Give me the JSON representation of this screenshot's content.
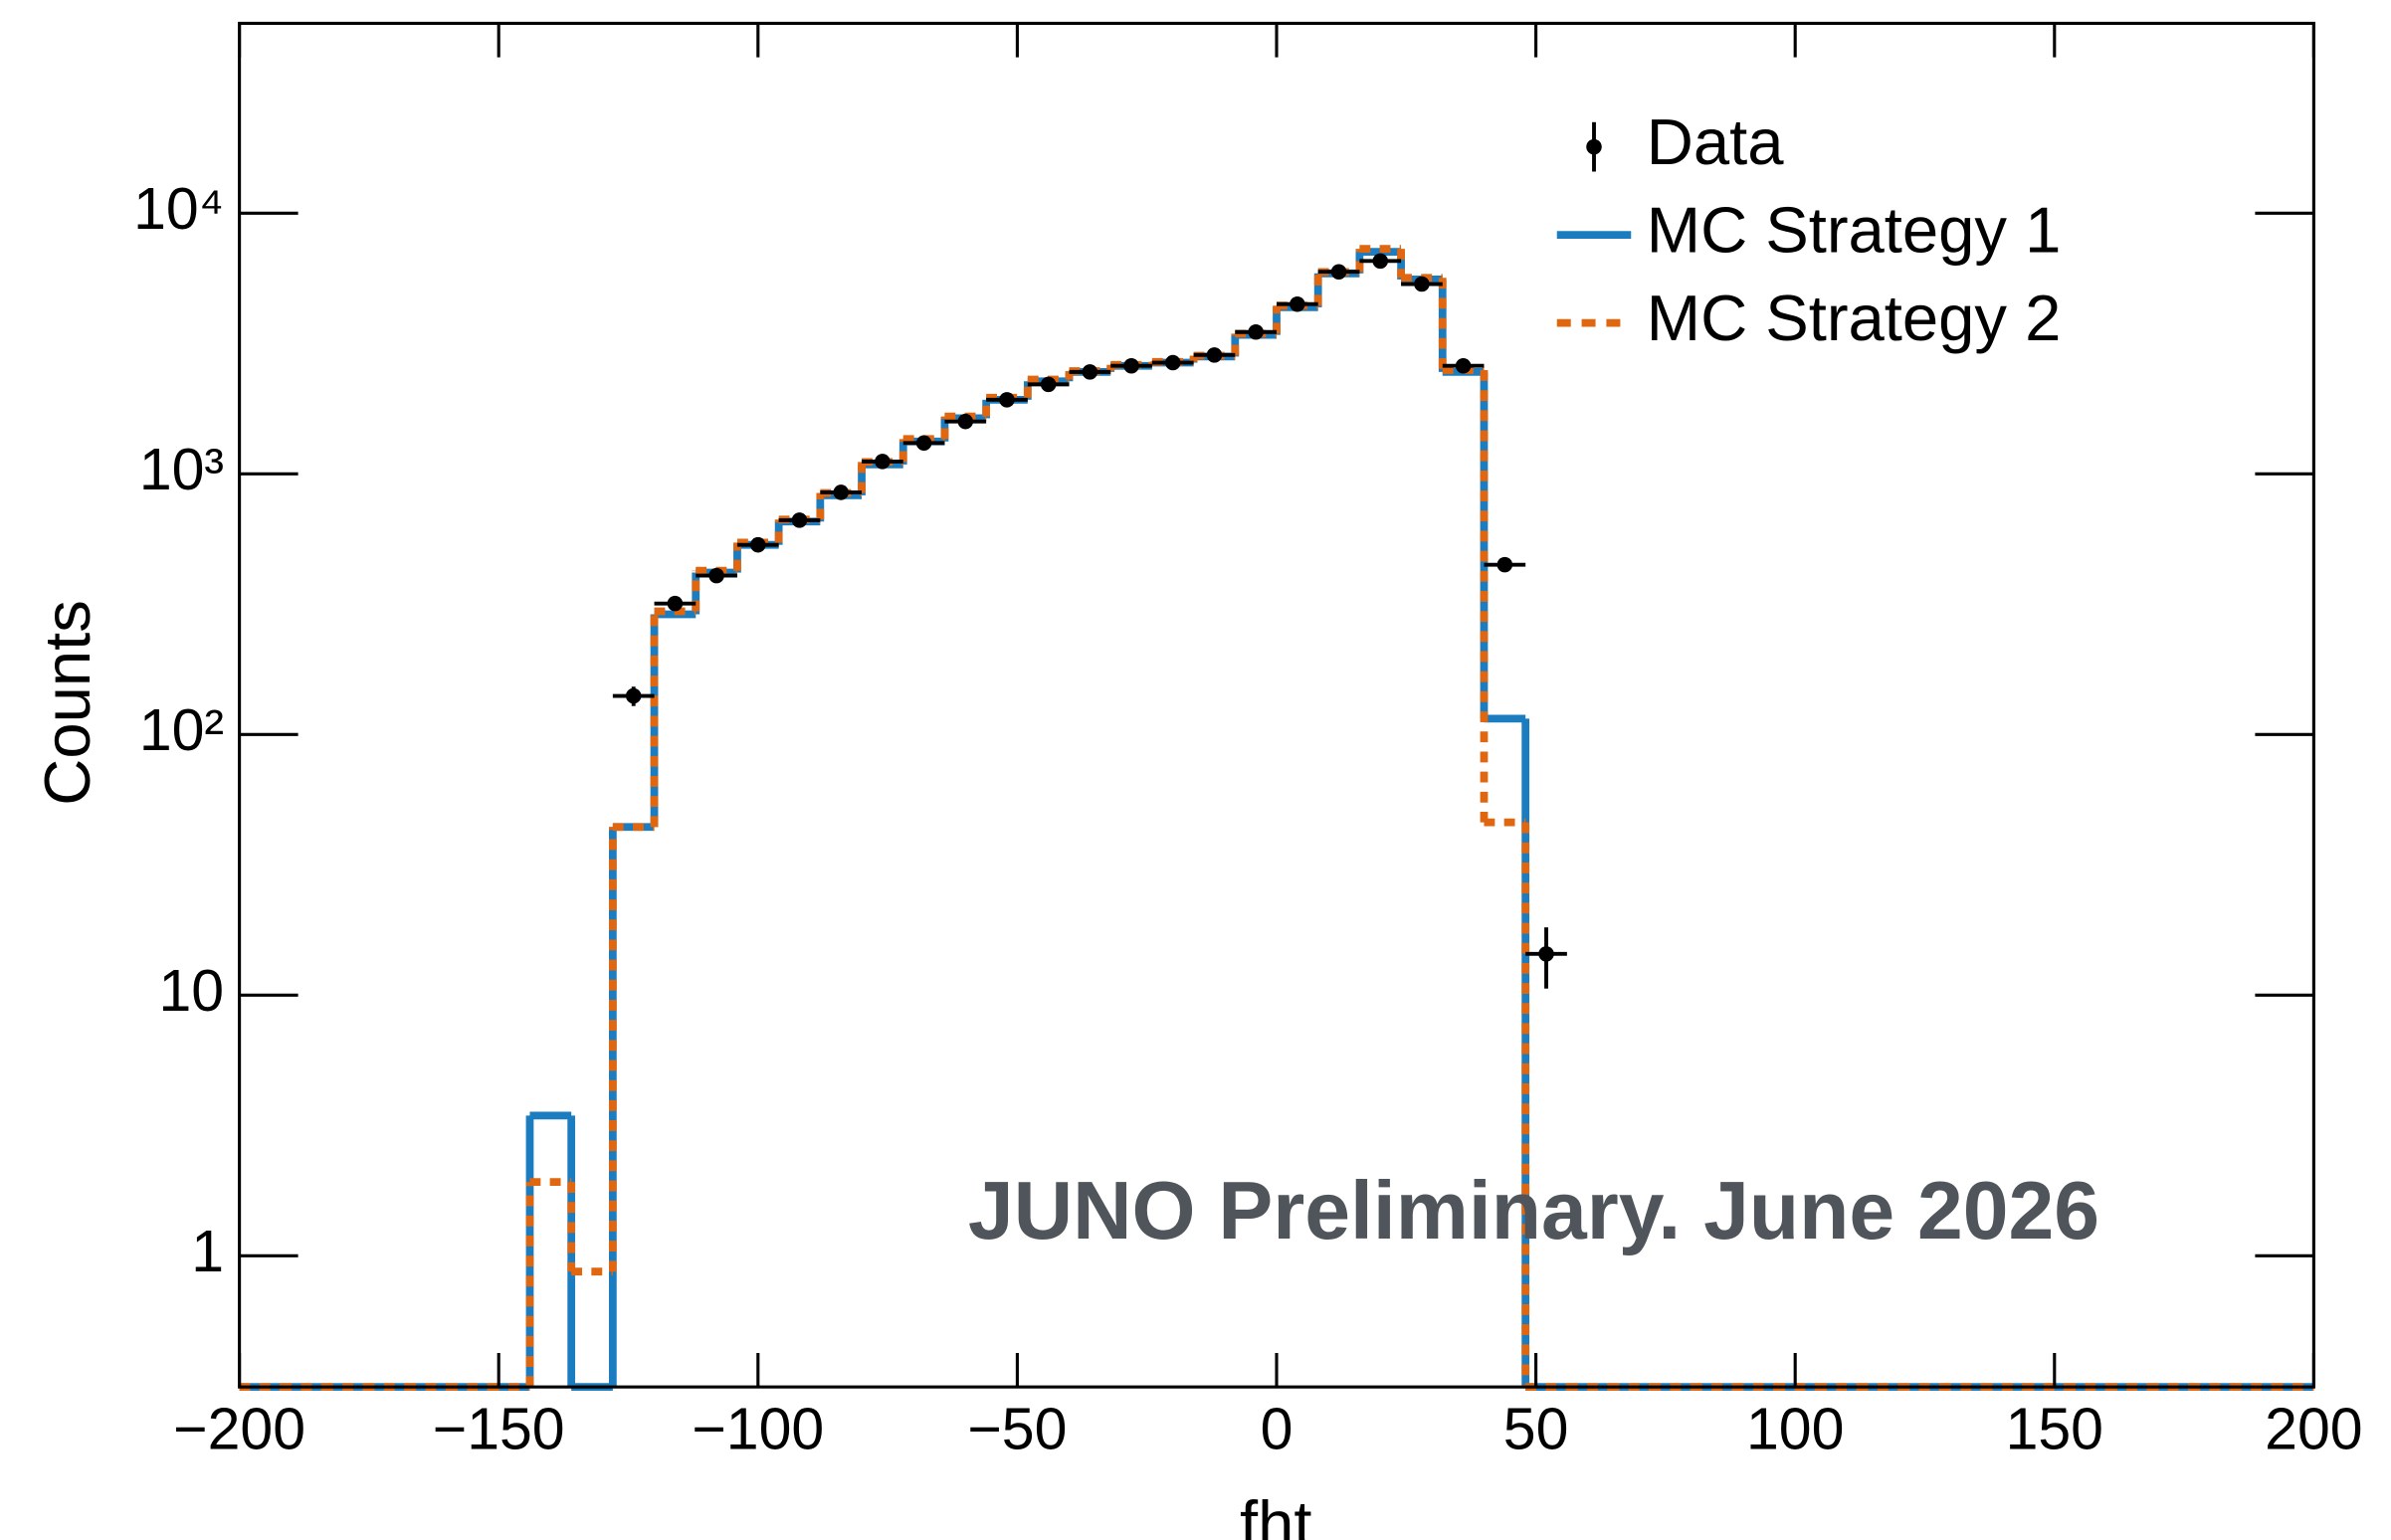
{
  "chart_data": {
    "type": "histogram",
    "x_label": "fht",
    "y_label": "Counts",
    "annotation": "JUNO Preliminary. June 2026",
    "log_y": true,
    "legend": "upper right",
    "xlim": [
      -200,
      200
    ],
    "ylim": [
      0.314,
      53500
    ],
    "xticks": [
      {
        "value": -200,
        "label": "−200"
      },
      {
        "value": -150,
        "label": "−150"
      },
      {
        "value": -100,
        "label": "−100"
      },
      {
        "value": -50,
        "label": "−50"
      },
      0,
      50,
      100,
      150,
      200
    ],
    "yticks": [
      1,
      10,
      {
        "value": 100,
        "label": "10²"
      },
      {
        "value": 1000,
        "label": "10³"
      },
      {
        "value": 10000,
        "label": "10⁴"
      }
    ],
    "bins": [
      -200,
      -192,
      -184,
      -176,
      -168,
      -160,
      -152,
      -144,
      -136,
      -128,
      -120,
      -112,
      -104,
      -96,
      -88,
      -80,
      -72,
      -64,
      -56,
      -48,
      -40,
      -32,
      -24,
      -16,
      -8,
      0,
      8,
      16,
      24,
      32,
      40,
      48,
      56,
      64,
      72,
      80,
      88,
      96,
      104,
      112,
      120,
      128,
      136,
      144,
      152,
      160,
      168,
      176,
      184,
      192,
      200
    ],
    "series": [
      {
        "name": "MC Strategy 1",
        "color": "#1b7dbf",
        "style": "solid",
        "values": [
          0,
          0,
          0,
          0,
          0,
          0,
          0,
          3.45,
          0,
          44.2,
          289,
          418,
          534,
          656,
          827,
          1086,
          1331,
          1634,
          1924,
          2265,
          2460,
          2597,
          2670,
          2818,
          3412,
          4355,
          5875,
          7112,
          5568,
          2460,
          115,
          0,
          0,
          0,
          0,
          0,
          0,
          0,
          0,
          0,
          0,
          0,
          0,
          0,
          0,
          0,
          0,
          0,
          0,
          0
        ]
      },
      {
        "name": "MC Strategy 2",
        "color": "#e0660f",
        "style": "dashed",
        "values": [
          0,
          0,
          0,
          0,
          0,
          0,
          0,
          1.92,
          0.87,
          44.2,
          297,
          425,
          545,
          668,
          845,
          1110,
          1360,
          1660,
          1960,
          2300,
          2480,
          2620,
          2690,
          2840,
          3450,
          4420,
          5950,
          7300,
          5650,
          2500,
          46,
          0,
          0,
          0,
          0,
          0,
          0,
          0,
          0,
          0,
          0,
          0,
          0,
          0,
          0,
          0,
          0,
          0,
          0,
          0
        ]
      }
    ],
    "points": {
      "name": "Data",
      "color": "#000000",
      "x": [
        -124,
        -116,
        -108,
        -100,
        -92,
        -84,
        -76,
        -68,
        -60,
        -52,
        -44,
        -36,
        -28,
        -20,
        -12,
        -4,
        4,
        12,
        20,
        28,
        36,
        44,
        52
      ],
      "values": [
        140.6,
        318,
        407,
        534,
        664,
        849,
        1115,
        1313,
        1588,
        1924,
        2204,
        2460,
        2597,
        2670,
        2857,
        3500,
        4477,
        5957,
        6555,
        5346,
        2597,
        448,
        14.4
      ],
      "errors": [
        12,
        18,
        20,
        23,
        26,
        29,
        33,
        36,
        40,
        44,
        47,
        50,
        51,
        52,
        53,
        59,
        67,
        77,
        81,
        73,
        51,
        21,
        3.8
      ]
    }
  }
}
